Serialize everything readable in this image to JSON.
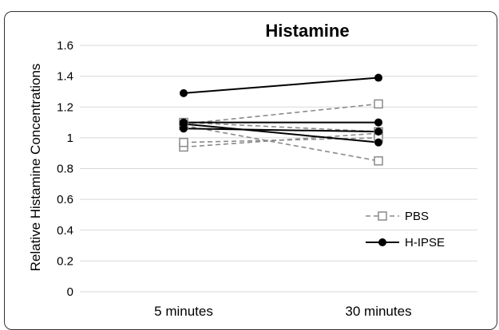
{
  "chart_data": {
    "type": "line",
    "title": "Histamine",
    "xlabel": "",
    "ylabel": "Relative Histamine Concentrations",
    "categories": [
      "5 minutes",
      "30 minutes"
    ],
    "ylim": [
      0,
      1.6
    ],
    "yticks": [
      0,
      0.2,
      0.4,
      0.6,
      0.8,
      1,
      1.2,
      1.4,
      1.6
    ],
    "grid": true,
    "legend_position": "right",
    "series": [
      {
        "name": "PBS",
        "group": "PBS",
        "values": [
          1.09,
          1.22
        ]
      },
      {
        "name": "PBS",
        "group": "PBS",
        "values": [
          0.94,
          1.03
        ]
      },
      {
        "name": "PBS",
        "group": "PBS",
        "values": [
          1.1,
          1.04
        ]
      },
      {
        "name": "PBS",
        "group": "PBS",
        "values": [
          0.97,
          1.0
        ]
      },
      {
        "name": "PBS",
        "group": "PBS",
        "values": [
          1.08,
          0.85
        ]
      },
      {
        "name": "H-IPSE",
        "group": "H-IPSE",
        "values": [
          1.29,
          1.39
        ]
      },
      {
        "name": "H-IPSE",
        "group": "H-IPSE",
        "values": [
          1.1,
          1.1
        ]
      },
      {
        "name": "H-IPSE",
        "group": "H-IPSE",
        "values": [
          1.09,
          0.97
        ]
      },
      {
        "name": "H-IPSE",
        "group": "H-IPSE",
        "values": [
          1.06,
          1.04
        ]
      }
    ],
    "legend": [
      {
        "label": "PBS",
        "style": "dashed-open-square",
        "color": "#888888"
      },
      {
        "label": "H-IPSE",
        "style": "solid-filled-circle",
        "color": "#000000"
      }
    ]
  }
}
